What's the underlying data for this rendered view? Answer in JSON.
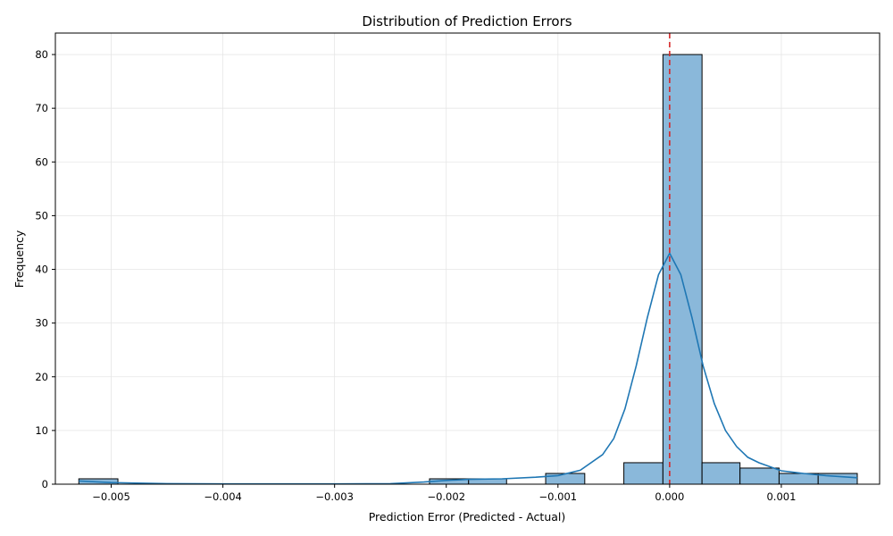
{
  "chart_data": {
    "type": "bar",
    "title": "Distribution of Prediction Errors",
    "xlabel": "Prediction Error (Predicted - Actual)",
    "ylabel": "Frequency",
    "xlim": [
      -0.0055,
      0.00188
    ],
    "ylim": [
      0,
      84
    ],
    "xticks": [
      -0.005,
      -0.004,
      -0.003,
      -0.002,
      -0.001,
      0.0,
      0.001
    ],
    "xtick_labels": [
      "−0.005",
      "−0.004",
      "−0.003",
      "−0.002",
      "−0.001",
      "0.000",
      "0.001"
    ],
    "yticks": [
      0,
      10,
      20,
      30,
      40,
      50,
      60,
      70,
      80
    ],
    "ytick_labels": [
      "0",
      "10",
      "20",
      "30",
      "40",
      "50",
      "60",
      "70",
      "80"
    ],
    "grid": true,
    "bin_edges": [
      -0.00529,
      -0.00494,
      -0.00459,
      -0.00424,
      -0.00389,
      -0.00354,
      -0.0032,
      -0.00285,
      -0.0025,
      -0.00215,
      -0.0018,
      -0.00146,
      -0.00111,
      -0.00076,
      -0.00041,
      -6e-05,
      0.00029,
      0.00063,
      0.00098,
      0.00133,
      0.00168
    ],
    "counts": [
      1,
      0,
      0,
      0,
      0,
      0,
      0,
      0,
      0,
      1,
      1,
      0,
      2,
      0,
      4,
      80,
      4,
      3,
      2,
      2
    ],
    "kde": {
      "x": [
        -0.00529,
        -0.005,
        -0.0045,
        -0.004,
        -0.0035,
        -0.003,
        -0.0025,
        -0.0022,
        -0.002,
        -0.0018,
        -0.0015,
        -0.0012,
        -0.001,
        -0.0008,
        -0.0006,
        -0.0005,
        -0.0004,
        -0.0003,
        -0.0002,
        -0.0001,
        0.0,
        0.0001,
        0.0002,
        0.0003,
        0.0004,
        0.0005,
        0.0006,
        0.0007,
        0.0008,
        0.001,
        0.0012,
        0.0014,
        0.00168
      ],
      "y": [
        0.6,
        0.3,
        0.1,
        0.05,
        0.05,
        0.05,
        0.1,
        0.4,
        0.7,
        0.9,
        1.0,
        1.3,
        1.6,
        2.6,
        5.5,
        8.5,
        14,
        22,
        31,
        39,
        43,
        39,
        31,
        22,
        15,
        10,
        7,
        5,
        4,
        2.5,
        2.0,
        1.6,
        1.2
      ]
    },
    "reference_line": {
      "x": 0.0,
      "color": "#d62728",
      "style": "dashed"
    },
    "colors": {
      "bar_fill": "#8ab8da",
      "bar_edge": "#000000",
      "kde_line": "#1f77b4",
      "grid": "#e6e6e6"
    }
  }
}
